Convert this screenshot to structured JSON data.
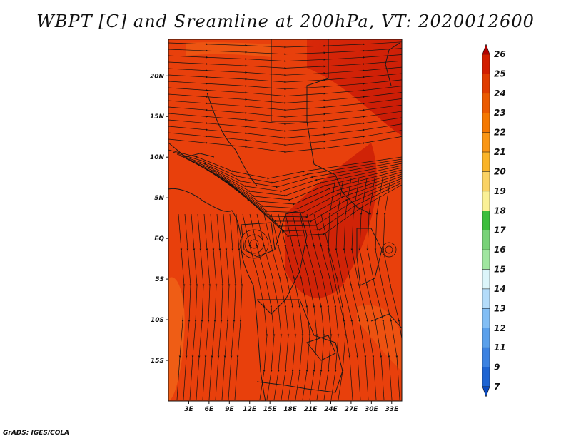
{
  "title": "WBPT [C] and Sreamline at 200hPa, VT: 2020012600",
  "credit": "GrADS: IGES/COLA",
  "map": {
    "lat_ticks": [
      "20N",
      "15N",
      "10N",
      "5N",
      "EQ",
      "5S",
      "10S",
      "15S"
    ],
    "lon_ticks": [
      "3E",
      "6E",
      "9E",
      "12E",
      "15E",
      "18E",
      "21E",
      "24E",
      "27E",
      "30E",
      "33E"
    ],
    "lat_values": [
      20,
      15,
      10,
      5,
      0,
      -5,
      -10,
      -15
    ],
    "lon_values": [
      3,
      6,
      9,
      12,
      15,
      18,
      21,
      24,
      27,
      30,
      33
    ],
    "lon_range": [
      0,
      34.5
    ],
    "lat_range": [
      -20,
      24.5
    ],
    "fill_color": "#e8400c",
    "high_color": "#c81a06",
    "low_color": "#f06418"
  },
  "colorbar": {
    "labels": [
      "26",
      "25",
      "24",
      "23",
      "22",
      "21",
      "20",
      "19",
      "18",
      "17",
      "16",
      "15",
      "14",
      "13",
      "12",
      "11",
      "9",
      "7"
    ],
    "colors": [
      "#b40000",
      "#d21e00",
      "#e03c00",
      "#eb5a00",
      "#f57800",
      "#fa9614",
      "#fab428",
      "#fad264",
      "#faf096",
      "#3cbe3c",
      "#78d278",
      "#a0e6a0",
      "#dcf5fa",
      "#b4dcfa",
      "#82bef5",
      "#5aa0eb",
      "#3c82e1",
      "#1e64d2",
      "#0a4bc3"
    ]
  }
}
